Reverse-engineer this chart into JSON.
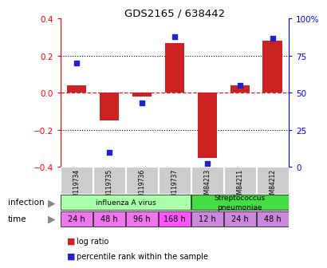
{
  "title": "GDS2165 / 638442",
  "samples": [
    "GSM119734",
    "GSM119735",
    "GSM119736",
    "GSM119737",
    "GSM84213",
    "GSM84211",
    "GSM84212"
  ],
  "log_ratio": [
    0.04,
    -0.15,
    -0.02,
    0.27,
    -0.35,
    0.04,
    0.28
  ],
  "percentile_rank": [
    70,
    10,
    43,
    88,
    2,
    55,
    87
  ],
  "ylim_left": [
    -0.4,
    0.4
  ],
  "ylim_right": [
    0,
    100
  ],
  "yticks_left": [
    -0.4,
    -0.2,
    0.0,
    0.2,
    0.4
  ],
  "yticks_right": [
    0,
    25,
    50,
    75,
    100
  ],
  "infections": [
    {
      "label": "influenza A virus",
      "start": 0,
      "end": 4,
      "color": "#aaffaa"
    },
    {
      "label": "Streptococcus\npneumoniae",
      "start": 4,
      "end": 7,
      "color": "#44dd44"
    }
  ],
  "times": [
    "24 h",
    "48 h",
    "96 h",
    "168 h",
    "12 h",
    "24 h",
    "48 h"
  ],
  "time_bg_colors": [
    "#dd77ee",
    "#dd77ee",
    "#dd77ee",
    "#ee55ee",
    "#cc88cc",
    "#cc88cc",
    "#cc88cc"
  ],
  "bar_color": "#cc2222",
  "dot_color": "#2222cc",
  "hline_color": "#cc2222",
  "label_area_bg": "#cccccc",
  "legend_red": "log ratio",
  "legend_blue": "percentile rank within the sample",
  "bar_width": 0.6
}
